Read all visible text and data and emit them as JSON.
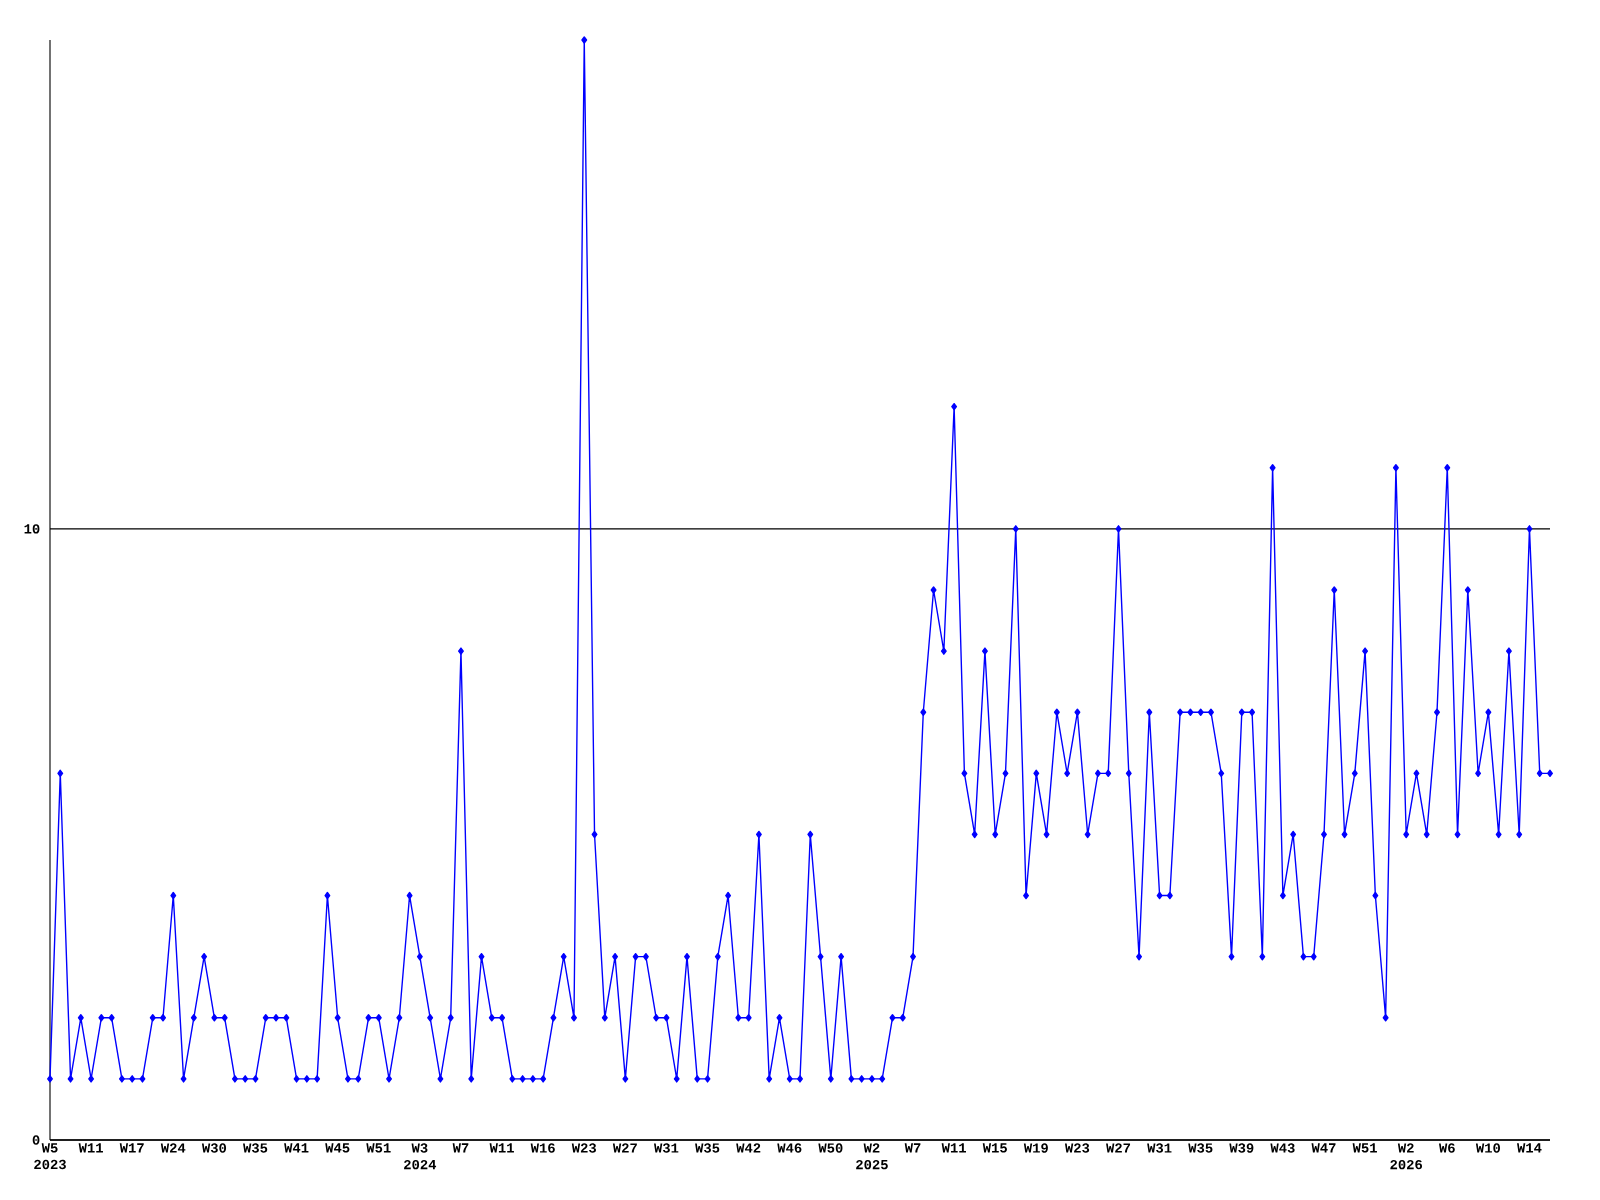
{
  "chart_data": {
    "type": "line",
    "categories": [
      "W5 2023",
      null,
      null,
      null,
      "W11",
      null,
      null,
      null,
      "W17",
      null,
      null,
      null,
      "W24",
      null,
      null,
      null,
      "W30",
      null,
      null,
      null,
      "W35",
      null,
      null,
      null,
      "W41",
      null,
      null,
      null,
      "W45",
      null,
      null,
      null,
      "W51",
      null,
      null,
      null,
      "W3 2024",
      null,
      null,
      null,
      "W7",
      null,
      null,
      null,
      "W11",
      null,
      null,
      null,
      "W16",
      null,
      null,
      null,
      "W23",
      null,
      null,
      null,
      "W27",
      null,
      null,
      null,
      "W31",
      null,
      null,
      null,
      "W35",
      null,
      null,
      null,
      "W42",
      null,
      null,
      null,
      "W46",
      null,
      null,
      null,
      "W50",
      null,
      null,
      null,
      "W2 2025",
      null,
      null,
      null,
      "W7",
      null,
      null,
      null,
      "W11",
      null,
      null,
      null,
      "W15",
      null,
      null,
      null,
      "W19",
      null,
      null,
      null,
      "W23",
      null,
      null,
      null,
      "W27",
      null,
      null,
      null,
      "W31",
      null,
      null,
      null,
      "W35",
      null,
      null,
      null,
      "W39",
      null,
      null,
      null,
      "W43",
      null,
      null,
      null,
      "W47",
      null,
      null,
      null,
      "W51",
      null,
      null,
      null,
      "W2 2026",
      null,
      null,
      null,
      "W6",
      null,
      null,
      null,
      "W10",
      null,
      null,
      null,
      "W14",
      null,
      null
    ],
    "series": [
      {
        "color": "#0000ff",
        "values": [
          1,
          6,
          1,
          2,
          1,
          2,
          2,
          1,
          1,
          1,
          2,
          2,
          4,
          1,
          2,
          3,
          2,
          2,
          1,
          1,
          1,
          2,
          2,
          2,
          1,
          1,
          1,
          4,
          2,
          1,
          1,
          2,
          2,
          1,
          2,
          4,
          3,
          2,
          1,
          2,
          8,
          1,
          3,
          2,
          2,
          1,
          1,
          1,
          1,
          2,
          3,
          2,
          18,
          5,
          2,
          3,
          1,
          3,
          3,
          2,
          2,
          1,
          3,
          1,
          1,
          3,
          4,
          2,
          2,
          5,
          1,
          2,
          1,
          1,
          5,
          3,
          1,
          3,
          1,
          1,
          1,
          1,
          2,
          2,
          3,
          7,
          9,
          8,
          12,
          6,
          5,
          8,
          5,
          6,
          10,
          4,
          6,
          5,
          7,
          6,
          7,
          5,
          6,
          6,
          10,
          6,
          3,
          7,
          4,
          4,
          7,
          7,
          7,
          7,
          6,
          3,
          7,
          7,
          3,
          11,
          4,
          5,
          3,
          3,
          5,
          9,
          5,
          6,
          8,
          4,
          2,
          11,
          5,
          6,
          5,
          7,
          11,
          5,
          9,
          6,
          7,
          5,
          8,
          5,
          10,
          6,
          6
        ]
      }
    ],
    "ylim": [
      0,
      18
    ],
    "yticks": [
      0,
      10
    ],
    "grid": "y",
    "marker": "diamond",
    "line_style": "solid"
  }
}
